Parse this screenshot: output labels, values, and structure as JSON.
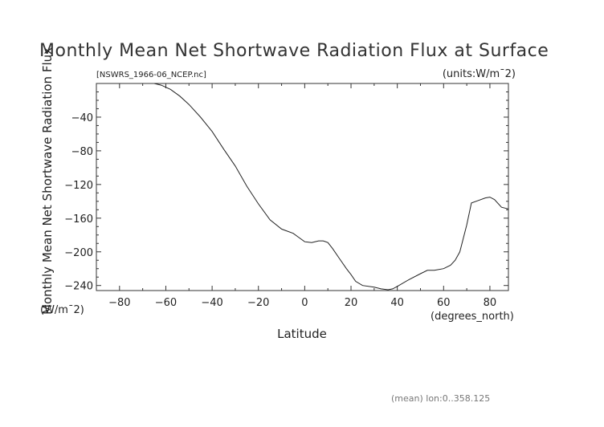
{
  "chart_data": {
    "type": "line",
    "title": "Monthly Mean Net Shortwave Radiation Flux at Surface",
    "subtitle_left": "[NSWRS_1966-06_NCEP.nc]",
    "subtitle_right": "(units:W/m¯2)",
    "ylabel": "Monthly Mean Net Shortwave Radiation Flux",
    "yunit": "(W/m¯2)",
    "xlabel": "Latitude",
    "xunit": "(degrees_north)",
    "footnote": "(mean) lon:0..358.125",
    "xlim": [
      -90,
      88
    ],
    "ylim": [
      -246,
      0
    ],
    "xticks": [
      -80,
      -60,
      -40,
      -20,
      0,
      20,
      40,
      60,
      80
    ],
    "yticks": [
      -40,
      -80,
      -120,
      -160,
      -200,
      -240
    ],
    "grid": false,
    "series": [
      {
        "x": [
          -65,
          -62,
          -58,
          -54,
          -50,
          -45,
          -40,
          -35,
          -30,
          -25,
          -20,
          -15,
          -10,
          -8,
          -5,
          -3,
          0,
          3,
          6,
          8,
          10,
          12,
          15,
          18,
          20,
          22,
          25,
          30,
          33,
          36,
          38,
          40,
          45,
          50,
          53,
          56,
          60,
          63,
          65,
          67,
          70,
          72,
          75,
          78,
          80,
          82,
          85,
          88
        ],
        "y": [
          0,
          -2,
          -7,
          -15,
          -25,
          -40,
          -57,
          -78,
          -98,
          -122,
          -143,
          -162,
          -173,
          -175,
          -178,
          -182,
          -188,
          -189,
          -187,
          -187,
          -189,
          -196,
          -208,
          -220,
          -227,
          -235,
          -240,
          -242,
          -244,
          -245,
          -244,
          -241,
          -233,
          -226,
          -222,
          -222,
          -220,
          -216,
          -210,
          -200,
          -168,
          -142,
          -139,
          -136,
          -135,
          -138,
          -147,
          -149
        ]
      }
    ]
  }
}
